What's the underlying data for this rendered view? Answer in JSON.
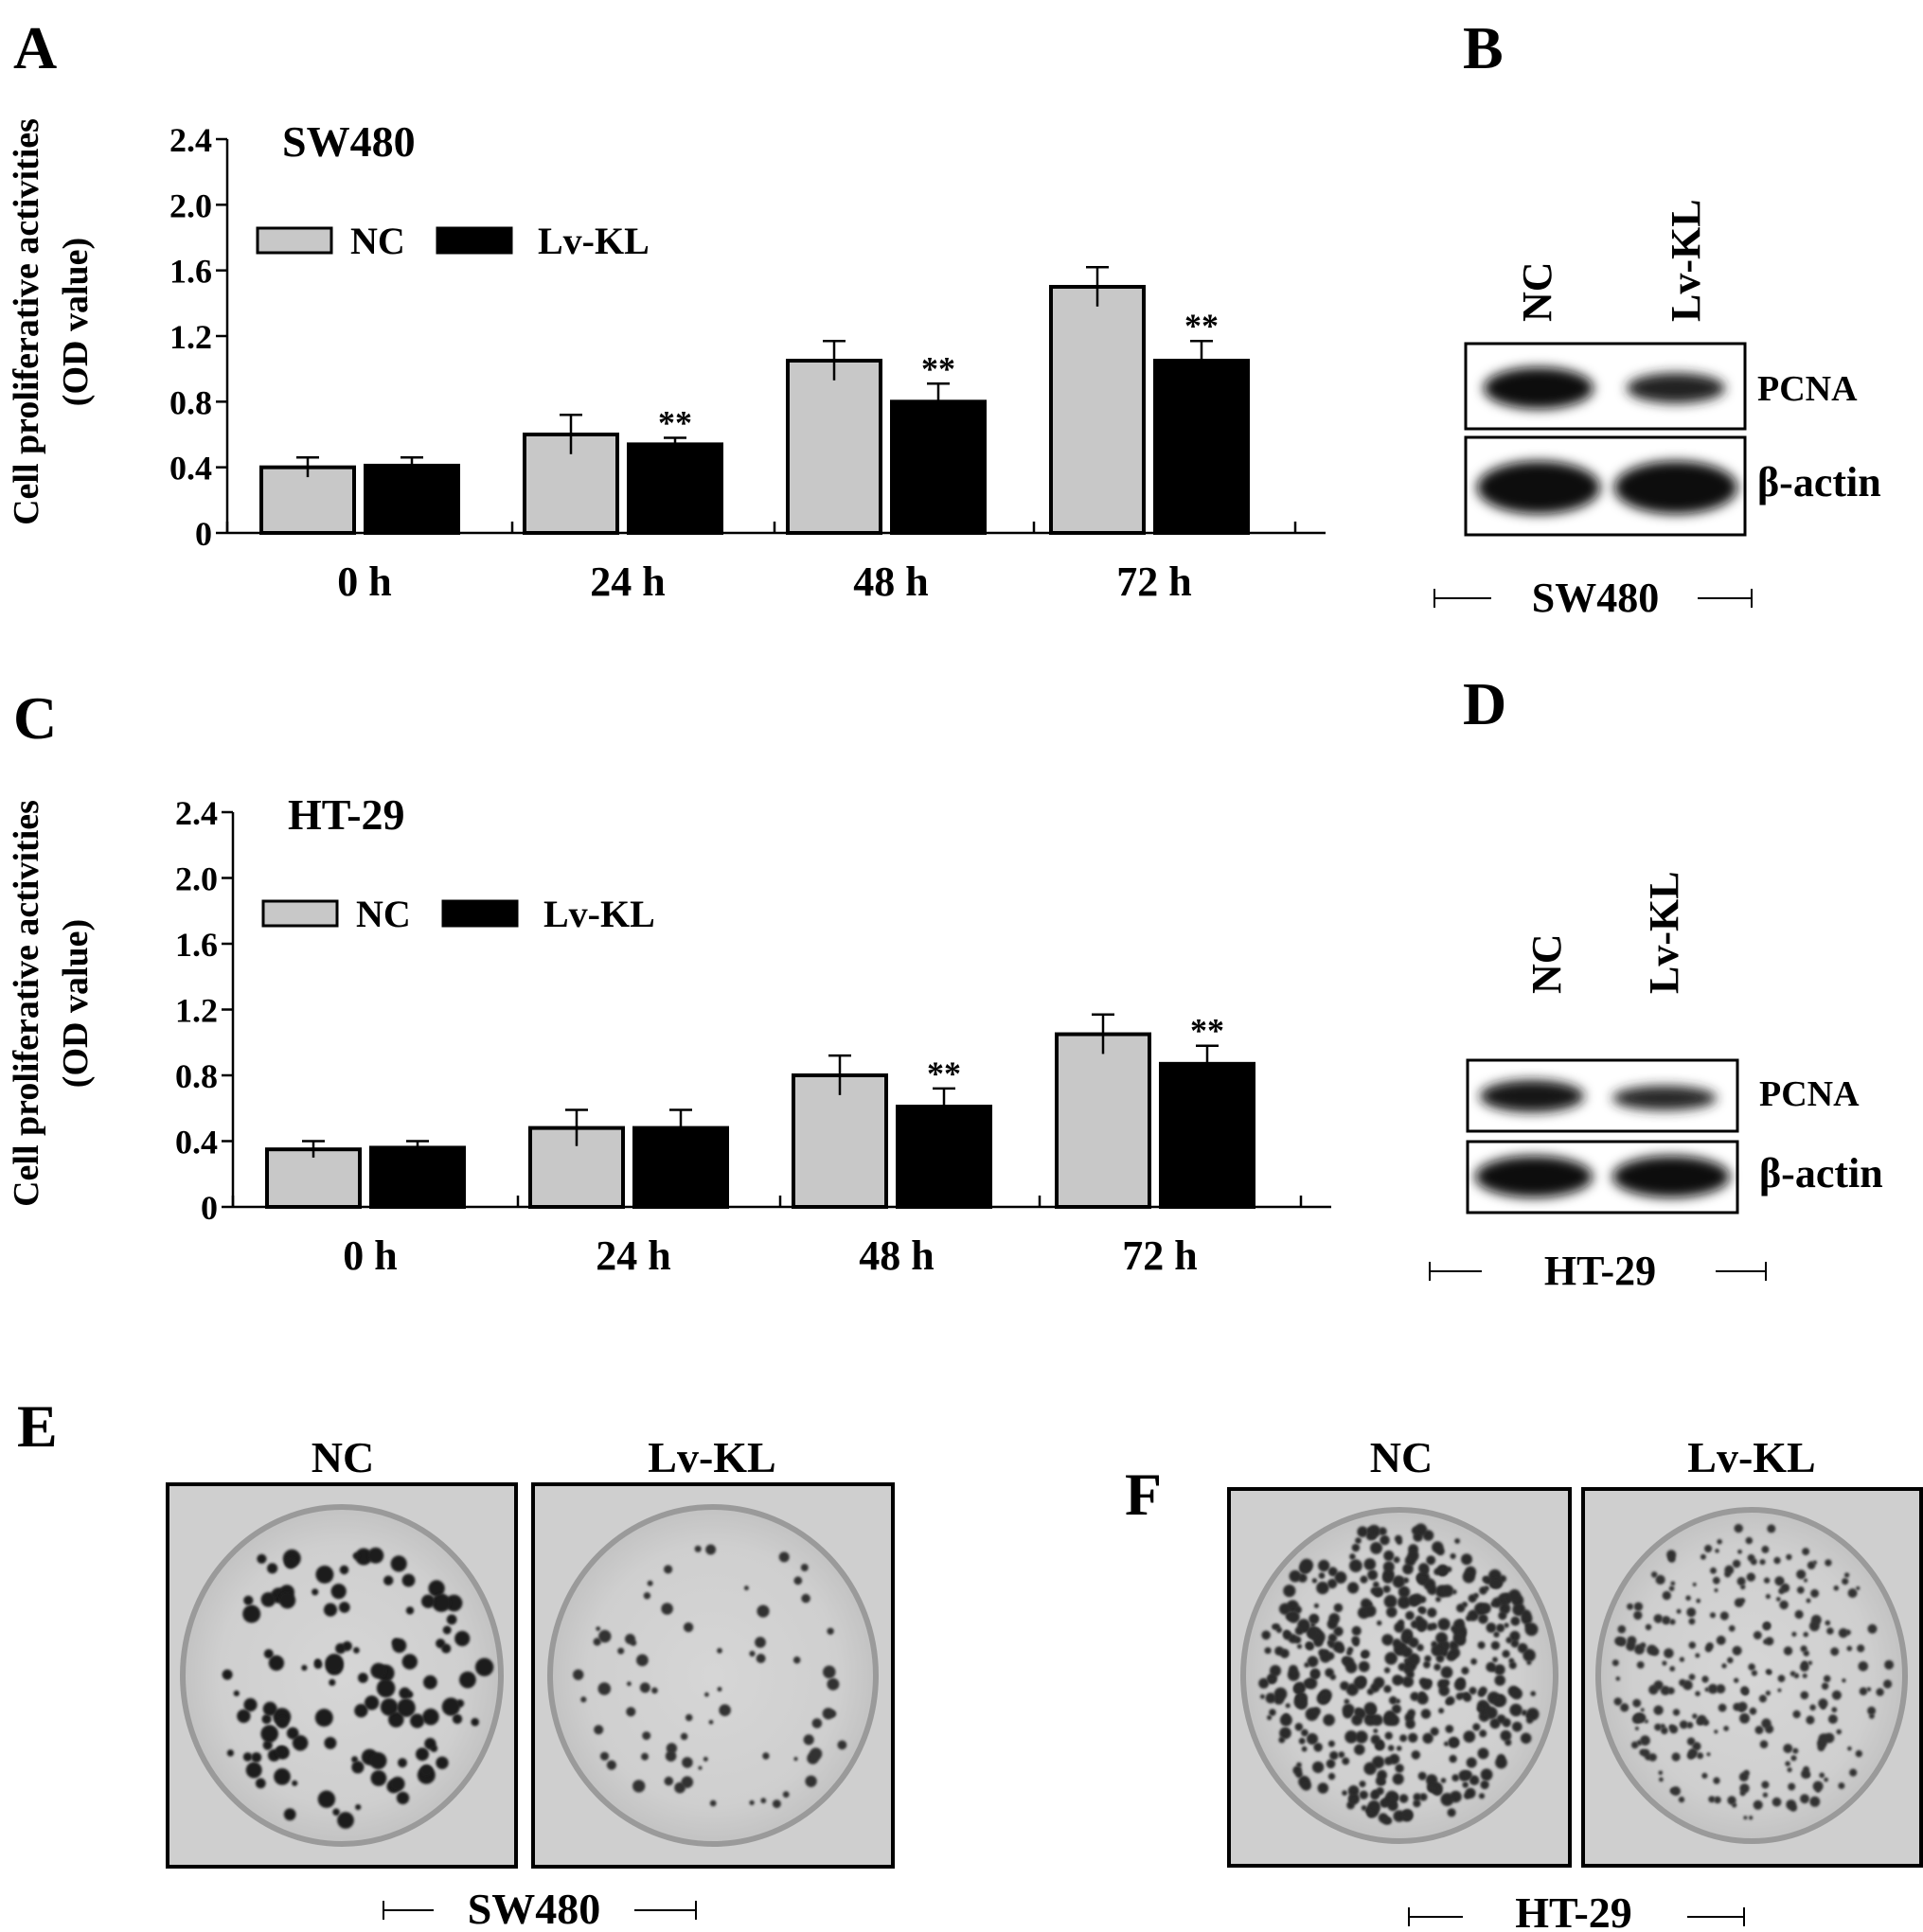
{
  "panels": {
    "A": "A",
    "B": "B",
    "C": "C",
    "D": "D",
    "E": "E",
    "F": "F"
  },
  "chart_data": [
    {
      "type": "bar",
      "panel": "A",
      "title": "SW480",
      "ylabel_line1": "Cell proliferative activities",
      "ylabel_line2": "(OD value)",
      "categories": [
        "0 h",
        "24 h",
        "48 h",
        "72 h"
      ],
      "yticks": [
        "0",
        "0.4",
        "0.8",
        "1.2",
        "1.6",
        "2.0",
        "2.4"
      ],
      "ylim": [
        0,
        2.4
      ],
      "legend_placement": "top-left",
      "series": [
        {
          "name": "NC",
          "color": "#c8c8c8",
          "values": [
            0.4,
            0.6,
            1.05,
            1.5
          ],
          "errors": [
            0.06,
            0.12,
            0.12,
            0.12
          ],
          "marks": [
            "",
            "",
            "",
            ""
          ]
        },
        {
          "name": "Lv-KL",
          "color": "#000000",
          "values": [
            0.41,
            0.54,
            0.8,
            1.05
          ],
          "errors": [
            0.05,
            0.04,
            0.11,
            0.12
          ],
          "marks": [
            "",
            "**",
            "**",
            "**"
          ]
        }
      ]
    },
    {
      "type": "bar",
      "panel": "C",
      "title": "HT-29",
      "ylabel_line1": "Cell proliferative activities",
      "ylabel_line2": "(OD value)",
      "categories": [
        "0 h",
        "24 h",
        "48 h",
        "72 h"
      ],
      "yticks": [
        "0",
        "0.4",
        "0.8",
        "1.2",
        "1.6",
        "2.0",
        "2.4"
      ],
      "ylim": [
        0,
        2.4
      ],
      "legend_placement": "top-left",
      "series": [
        {
          "name": "NC",
          "color": "#c8c8c8",
          "values": [
            0.35,
            0.48,
            0.8,
            1.05
          ],
          "errors": [
            0.05,
            0.11,
            0.12,
            0.12
          ],
          "marks": [
            "",
            "",
            "",
            ""
          ]
        },
        {
          "name": "Lv-KL",
          "color": "#000000",
          "values": [
            0.36,
            0.48,
            0.61,
            0.87
          ],
          "errors": [
            0.04,
            0.11,
            0.11,
            0.11
          ],
          "marks": [
            "",
            "",
            "**",
            "**"
          ]
        }
      ]
    }
  ],
  "blots": {
    "B": {
      "lanes": [
        "NC",
        "Lv-KL"
      ],
      "bands": [
        "PCNA",
        "β-actin"
      ],
      "cell_line": "SW480"
    },
    "D": {
      "lanes": [
        "NC",
        "Lv-KL"
      ],
      "bands": [
        "PCNA",
        "β-actin"
      ],
      "cell_line": "HT-29"
    }
  },
  "colonies": {
    "E": {
      "labels": [
        "NC",
        "Lv-KL"
      ],
      "cell_line": "SW480"
    },
    "F": {
      "labels": [
        "NC",
        "Lv-KL"
      ],
      "cell_line": "HT-29"
    }
  }
}
